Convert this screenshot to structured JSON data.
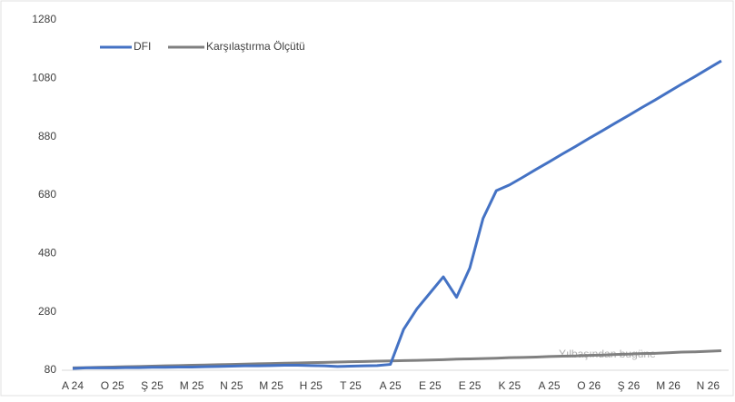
{
  "chart_data": {
    "type": "line",
    "categories": [
      "A 24",
      null,
      null,
      "O 25",
      null,
      null,
      "Ş 25",
      null,
      null,
      "M 25",
      null,
      null,
      "N 25",
      null,
      null,
      "M 25",
      null,
      null,
      "H 25",
      null,
      null,
      "T 25",
      null,
      null,
      "A 25",
      null,
      null,
      "E 25",
      null,
      null,
      "E 25",
      null,
      null,
      "K 25",
      null,
      null,
      "A 25",
      null,
      null,
      "O 26",
      null,
      null,
      "Ş 26",
      null,
      null,
      "M 26",
      null,
      null,
      "N 26",
      null
    ],
    "series": [
      {
        "name": "DFI",
        "color": "#4472c4",
        "values": [
          86,
          88,
          88,
          88,
          89,
          89,
          90,
          90,
          91,
          91,
          92,
          93,
          94,
          95,
          95,
          96,
          97,
          97,
          96,
          95,
          93,
          94,
          95,
          96,
          100,
          220,
          290,
          345,
          400,
          330,
          430,
          600,
          695,
          715,
          741,
          768,
          794,
          821,
          847,
          874,
          900,
          927,
          953,
          980,
          1006,
          1033,
          1060,
          1086,
          1113,
          1140
        ]
      },
      {
        "name": "Karşılaştırma Ölçütü",
        "color": "#808080",
        "values": [
          88,
          89,
          90,
          91,
          92,
          93,
          94,
          95,
          96,
          97,
          98,
          99,
          100,
          101,
          102,
          103,
          104,
          105,
          106,
          107,
          108,
          109,
          110,
          111,
          112,
          113,
          114,
          115,
          116,
          118,
          119,
          120,
          121,
          123,
          124,
          125,
          127,
          128,
          129,
          131,
          132,
          134,
          135,
          137,
          138,
          140,
          142,
          143,
          145,
          147
        ]
      }
    ],
    "ylim": [
      80,
      1280
    ],
    "yticks": [
      80,
      280,
      480,
      680,
      880,
      1080,
      1280
    ],
    "annotation": "Yılbaşından bugüne",
    "grid": false,
    "legend": "top-left"
  }
}
